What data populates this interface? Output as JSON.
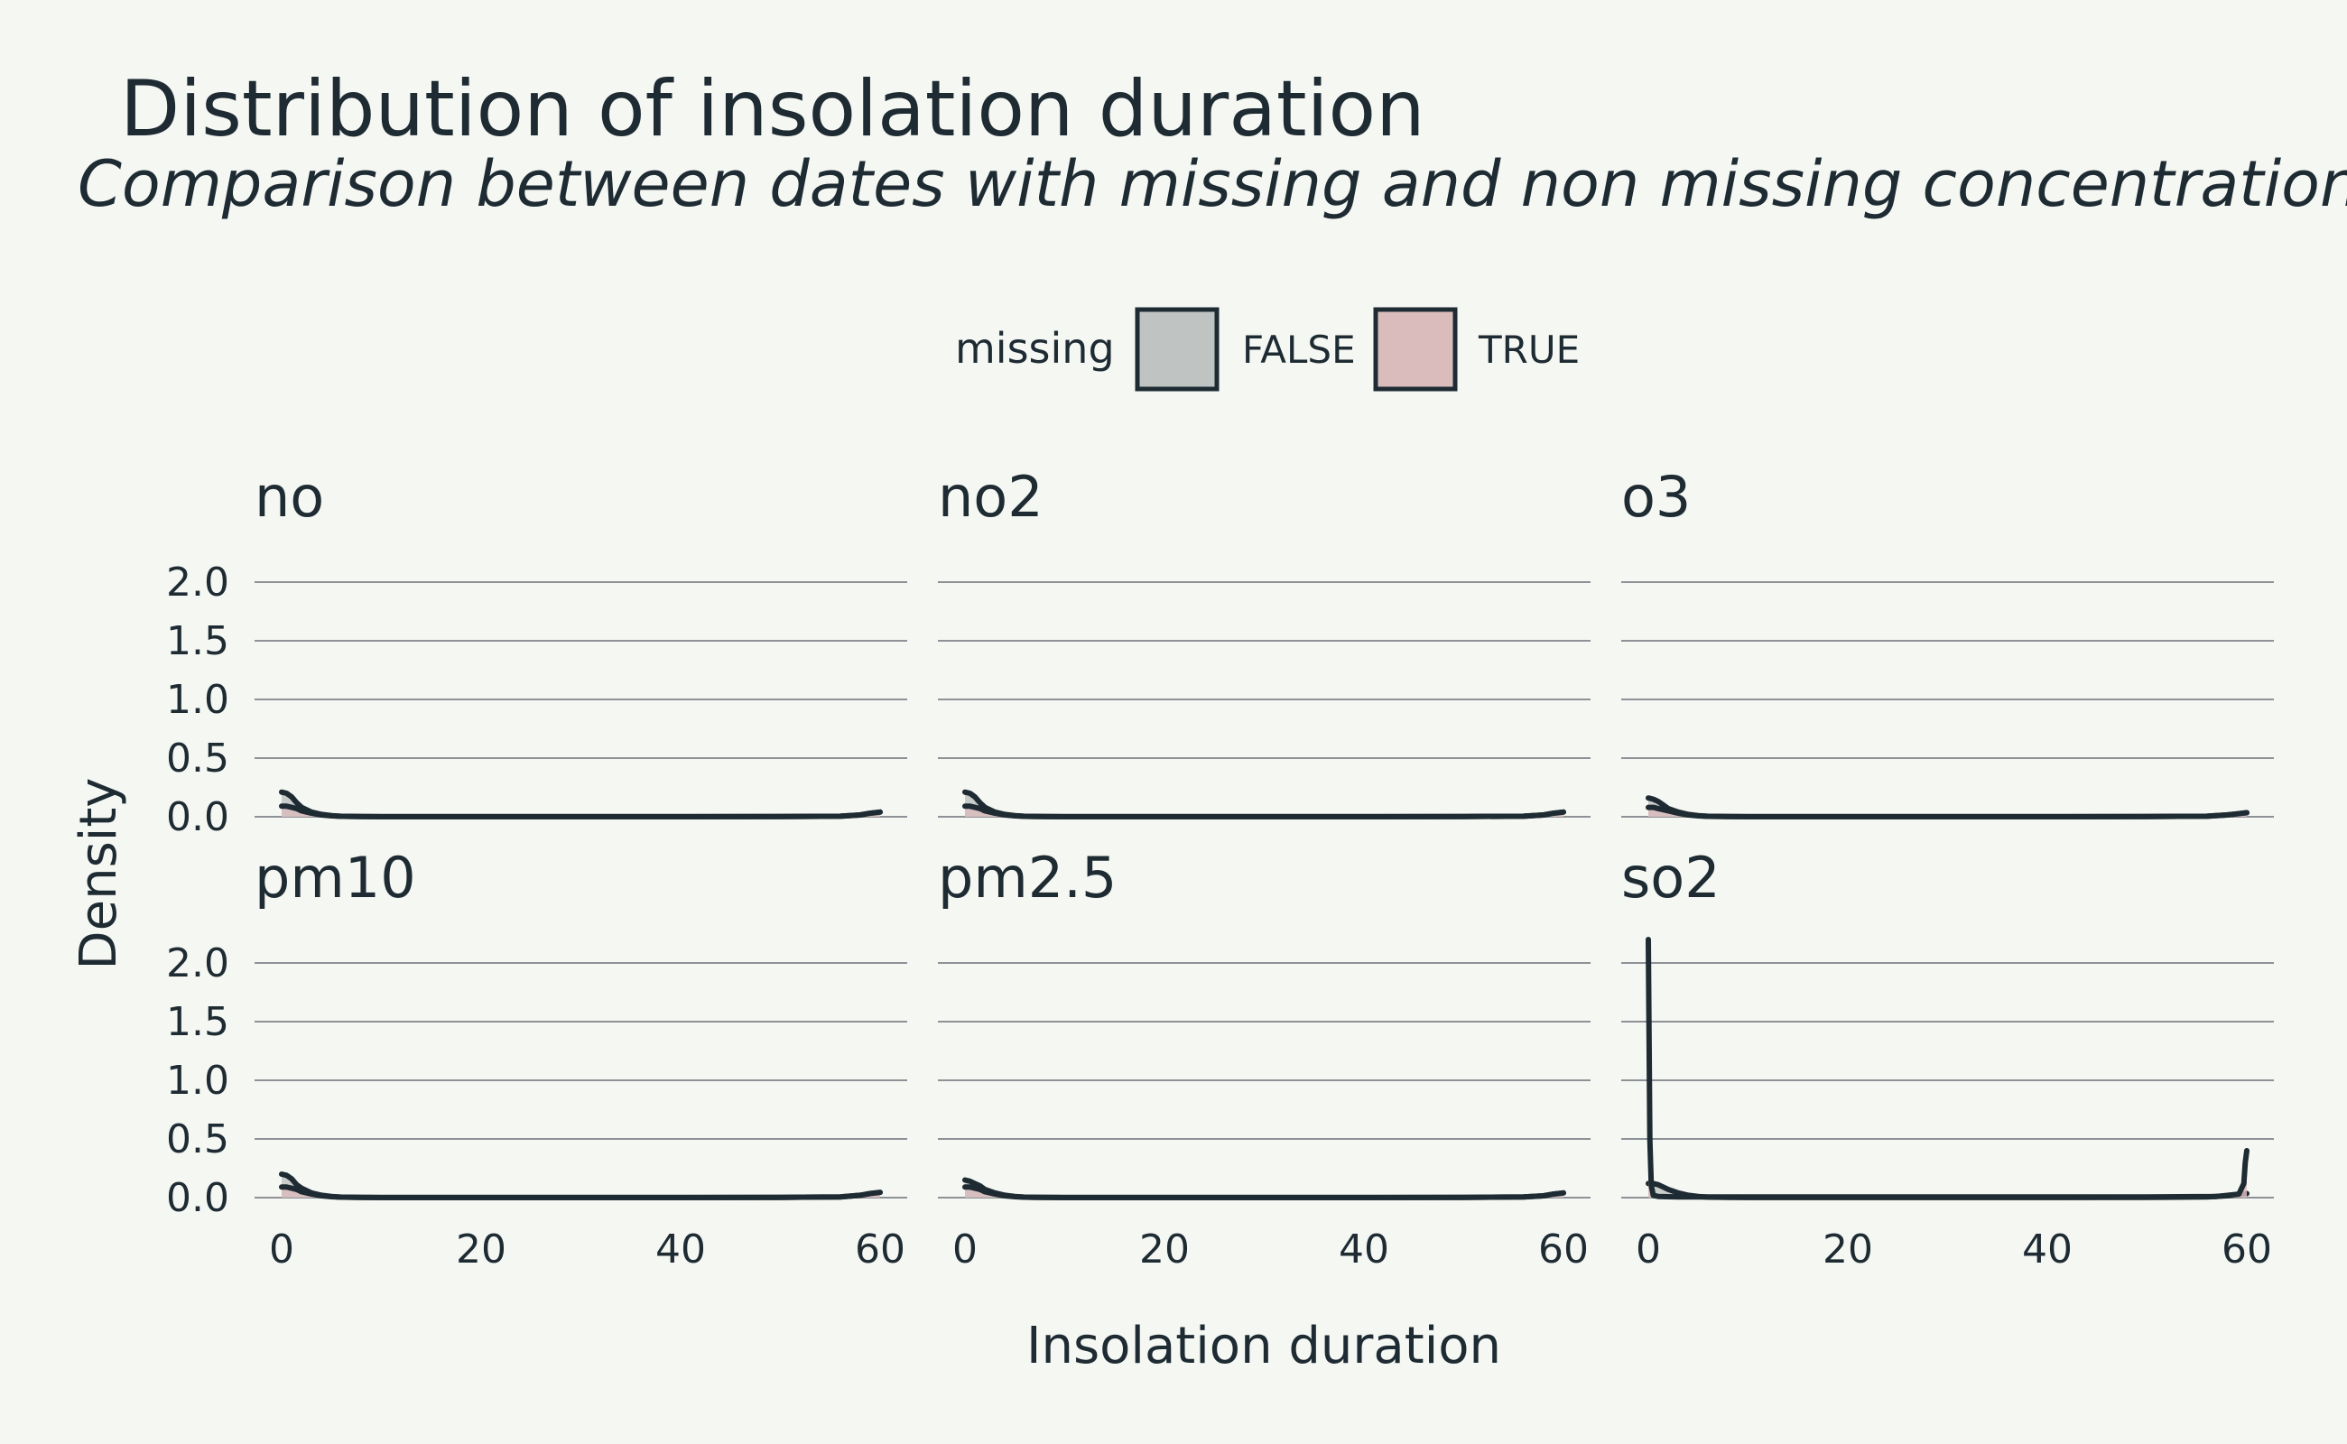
{
  "chart_data": {
    "type": "area",
    "title": "Distribution of insolation duration",
    "subtitle": "Comparison between dates with missing and non missing concentrations",
    "xlabel": "Insolation duration",
    "ylabel": "Density",
    "xlim": [
      0,
      60
    ],
    "ylim": [
      0,
      2.2
    ],
    "x_ticks": [
      0,
      20,
      40,
      60
    ],
    "y_ticks": [
      0.0,
      0.5,
      1.0,
      1.5,
      2.0
    ],
    "y_tick_labels": [
      "0.0",
      "0.5",
      "1.0",
      "1.5",
      "2.0"
    ],
    "legend": {
      "title": "missing",
      "placement": "top",
      "entries": [
        {
          "label": "FALSE",
          "color": "#bfc4c2"
        },
        {
          "label": "TRUE",
          "color": "#dbbcbd"
        }
      ]
    },
    "line_color": "#1e2b33",
    "panels": [
      {
        "name": "no",
        "series": [
          {
            "missing": "FALSE",
            "x": [
              0,
              0.5,
              1,
              1.5,
              2,
              3,
              4,
              5,
              6,
              8,
              10,
              20,
              30,
              40,
              50,
              56,
              58,
              59,
              60
            ],
            "y": [
              0.21,
              0.2,
              0.17,
              0.12,
              0.08,
              0.04,
              0.02,
              0.01,
              0.004,
              0.002,
              0.001,
              0.001,
              0.001,
              0.001,
              0.002,
              0.005,
              0.015,
              0.03,
              0.04
            ]
          },
          {
            "missing": "TRUE",
            "x": [
              0,
              0.5,
              1,
              1.5,
              2,
              3,
              4,
              5,
              6,
              8,
              10,
              20,
              30,
              40,
              50,
              56,
              58,
              59,
              60
            ],
            "y": [
              0.09,
              0.09,
              0.08,
              0.07,
              0.05,
              0.03,
              0.015,
              0.008,
              0.004,
              0.002,
              0.001,
              0.001,
              0.001,
              0.001,
              0.002,
              0.005,
              0.015,
              0.03,
              0.04
            ]
          }
        ]
      },
      {
        "name": "no2",
        "series": [
          {
            "missing": "FALSE",
            "x": [
              0,
              0.5,
              1,
              1.5,
              2,
              3,
              4,
              5,
              6,
              8,
              10,
              20,
              30,
              40,
              50,
              56,
              58,
              59,
              60
            ],
            "y": [
              0.21,
              0.2,
              0.17,
              0.12,
              0.08,
              0.04,
              0.02,
              0.01,
              0.004,
              0.002,
              0.001,
              0.001,
              0.001,
              0.001,
              0.002,
              0.005,
              0.015,
              0.03,
              0.04
            ]
          },
          {
            "missing": "TRUE",
            "x": [
              0,
              0.5,
              1,
              1.5,
              2,
              3,
              4,
              5,
              6,
              8,
              10,
              20,
              30,
              40,
              50,
              56,
              58,
              59,
              60
            ],
            "y": [
              0.09,
              0.09,
              0.08,
              0.07,
              0.05,
              0.03,
              0.015,
              0.008,
              0.004,
              0.002,
              0.001,
              0.001,
              0.001,
              0.001,
              0.002,
              0.005,
              0.015,
              0.03,
              0.04
            ]
          }
        ]
      },
      {
        "name": "o3",
        "series": [
          {
            "missing": "FALSE",
            "x": [
              0,
              0.5,
              1,
              1.5,
              2,
              3,
              4,
              5,
              6,
              8,
              10,
              20,
              30,
              40,
              50,
              56,
              58,
              59,
              60
            ],
            "y": [
              0.16,
              0.15,
              0.13,
              0.1,
              0.07,
              0.04,
              0.02,
              0.01,
              0.004,
              0.002,
              0.001,
              0.001,
              0.001,
              0.001,
              0.002,
              0.005,
              0.015,
              0.025,
              0.035
            ]
          },
          {
            "missing": "TRUE",
            "x": [
              0,
              0.5,
              1,
              1.5,
              2,
              3,
              4,
              5,
              6,
              8,
              10,
              20,
              30,
              40,
              50,
              56,
              58,
              59,
              60
            ],
            "y": [
              0.08,
              0.08,
              0.07,
              0.06,
              0.05,
              0.03,
              0.015,
              0.008,
              0.004,
              0.002,
              0.001,
              0.001,
              0.001,
              0.001,
              0.002,
              0.005,
              0.015,
              0.025,
              0.035
            ]
          }
        ]
      },
      {
        "name": "pm10",
        "series": [
          {
            "missing": "FALSE",
            "x": [
              0,
              0.5,
              1,
              1.5,
              2,
              3,
              4,
              5,
              6,
              8,
              10,
              20,
              30,
              40,
              50,
              56,
              58,
              59,
              60
            ],
            "y": [
              0.2,
              0.19,
              0.16,
              0.11,
              0.08,
              0.04,
              0.02,
              0.01,
              0.004,
              0.002,
              0.001,
              0.001,
              0.001,
              0.001,
              0.002,
              0.006,
              0.02,
              0.035,
              0.045
            ]
          },
          {
            "missing": "TRUE",
            "x": [
              0,
              0.5,
              1,
              1.5,
              2,
              3,
              4,
              5,
              6,
              8,
              10,
              20,
              30,
              40,
              50,
              56,
              58,
              59,
              60
            ],
            "y": [
              0.09,
              0.09,
              0.08,
              0.07,
              0.05,
              0.03,
              0.015,
              0.008,
              0.004,
              0.002,
              0.001,
              0.001,
              0.001,
              0.001,
              0.002,
              0.006,
              0.02,
              0.035,
              0.045
            ]
          }
        ]
      },
      {
        "name": "pm2.5",
        "series": [
          {
            "missing": "FALSE",
            "x": [
              0,
              0.5,
              1,
              1.5,
              2,
              3,
              4,
              5,
              6,
              8,
              10,
              20,
              30,
              40,
              50,
              56,
              58,
              59,
              60
            ],
            "y": [
              0.15,
              0.14,
              0.12,
              0.1,
              0.07,
              0.04,
              0.02,
              0.01,
              0.004,
              0.002,
              0.001,
              0.001,
              0.001,
              0.001,
              0.002,
              0.005,
              0.015,
              0.03,
              0.04
            ]
          },
          {
            "missing": "TRUE",
            "x": [
              0,
              0.5,
              1,
              1.5,
              2,
              3,
              4,
              5,
              6,
              8,
              10,
              20,
              30,
              40,
              50,
              56,
              58,
              59,
              60
            ],
            "y": [
              0.09,
              0.09,
              0.08,
              0.07,
              0.05,
              0.03,
              0.015,
              0.008,
              0.004,
              0.002,
              0.001,
              0.001,
              0.001,
              0.001,
              0.002,
              0.005,
              0.015,
              0.03,
              0.04
            ]
          }
        ]
      },
      {
        "name": "so2",
        "series": [
          {
            "missing": "FALSE",
            "x": [
              0,
              0.5,
              1,
              1.5,
              2,
              3,
              4,
              5,
              6,
              8,
              10,
              20,
              30,
              40,
              50,
              56,
              58,
              59,
              60
            ],
            "y": [
              0.12,
              0.12,
              0.11,
              0.09,
              0.07,
              0.04,
              0.02,
              0.01,
              0.004,
              0.002,
              0.001,
              0.001,
              0.001,
              0.001,
              0.002,
              0.005,
              0.015,
              0.025,
              0.035
            ]
          },
          {
            "missing": "TRUE",
            "x": [
              0,
              0.05,
              0.15,
              0.3,
              0.5,
              1,
              3,
              10,
              20,
              30,
              40,
              50,
              57,
              59.2,
              59.7,
              59.85,
              60
            ],
            "y": [
              2.2,
              1.6,
              0.5,
              0.1,
              0.02,
              0.01,
              0.005,
              0.005,
              0.005,
              0.005,
              0.005,
              0.005,
              0.01,
              0.03,
              0.12,
              0.3,
              0.4
            ]
          }
        ]
      }
    ]
  }
}
